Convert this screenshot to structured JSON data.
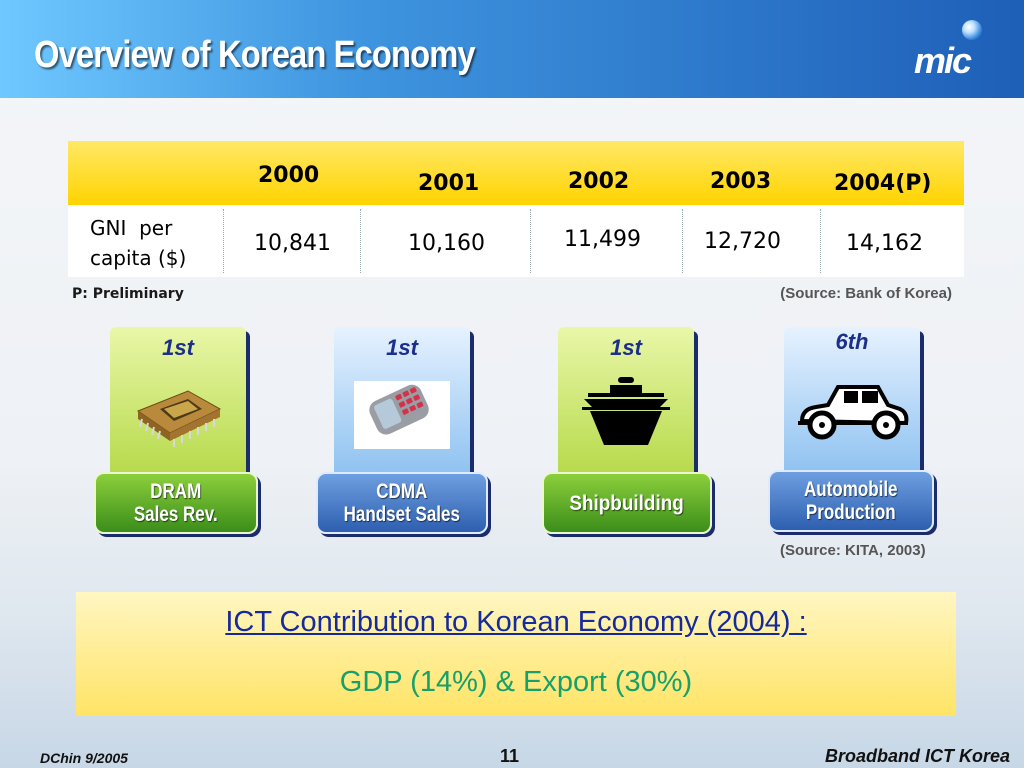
{
  "header": {
    "title": "Overview of Korean Economy",
    "logo": "mic"
  },
  "gni_table": {
    "columns": [
      "2000",
      "2001",
      "2002",
      "2003",
      "2004(P)"
    ],
    "row_label_line1": "GNI  per",
    "row_label_line2": "capita ($)",
    "values": [
      "10,841",
      "10,160",
      "11,499",
      "12,720",
      "14,162"
    ],
    "note": "P: Preliminary",
    "source": "(Source: Bank of Korea)"
  },
  "industries": [
    {
      "rank": "1st",
      "label_line1": "DRAM",
      "label_line2": "Sales Rev.",
      "icon": "memory-chip-icon"
    },
    {
      "rank": "1st",
      "label_line1": "CDMA",
      "label_line2": "Handset Sales",
      "icon": "mobile-phone-icon"
    },
    {
      "rank": "1st",
      "label_line1": "Shipbuilding",
      "label_line2": "",
      "icon": "ship-icon"
    },
    {
      "rank": "6th",
      "label_line1": "Automobile",
      "label_line2": "Production",
      "icon": "car-icon"
    }
  ],
  "industries_source": "(Source: KITA, 2003)",
  "ict": {
    "title": "ICT Contribution to Korean Economy (2004) :",
    "subtitle": "GDP (14%) & Export (30%)"
  },
  "footer": {
    "left": "DChin 9/2005",
    "page": "11",
    "right": "Broadband ICT Korea"
  },
  "colors": {
    "title_blue": "#152a9c",
    "subtitle_green": "#16a06a",
    "table_header": "#ffd400",
    "card_green": "#b6d94a",
    "card_blue": "#8dc1f0"
  }
}
